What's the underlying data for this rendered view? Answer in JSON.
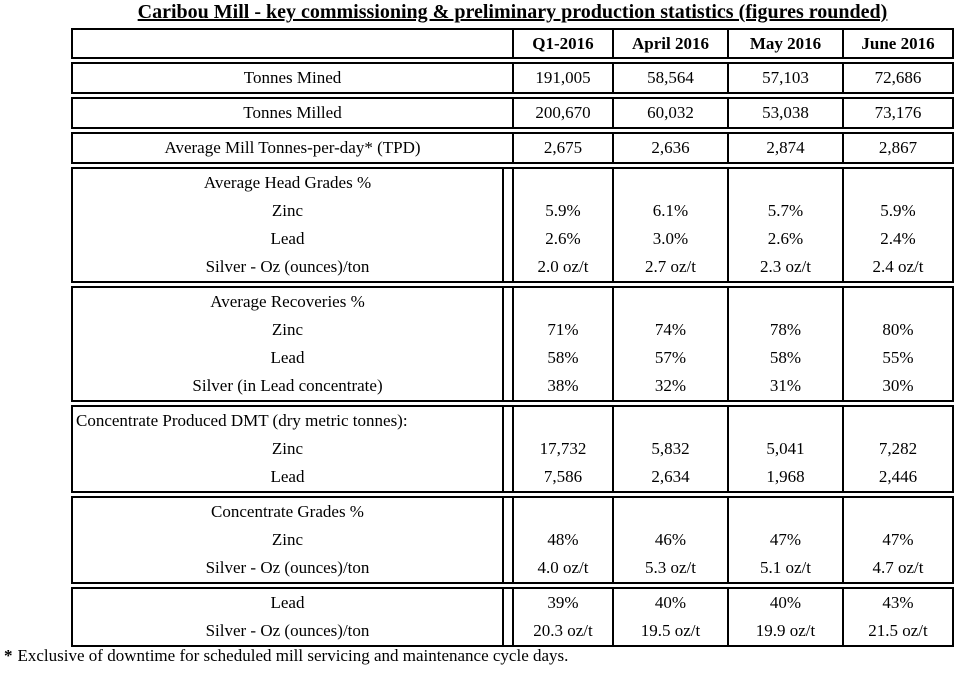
{
  "title": "Caribou Mill - key commissioning & preliminary production statistics (figures rounded)",
  "columns": [
    "Q1-2016",
    "April 2016",
    "May 2016",
    "June 2016"
  ],
  "colors": {
    "border": "#000000",
    "text": "#000000",
    "background": "#ffffff"
  },
  "blocks": [
    {
      "header": true,
      "rows": [
        {
          "label": "",
          "values": [
            "Q1-2016",
            "April 2016",
            "May 2016",
            "June 2016"
          ]
        }
      ]
    },
    {
      "rows": [
        {
          "label": "Tonnes Mined",
          "values": [
            "191,005",
            "58,564",
            "57,103",
            "72,686"
          ]
        }
      ]
    },
    {
      "rows": [
        {
          "label": "Tonnes Milled",
          "values": [
            "200,670",
            "60,032",
            "53,038",
            "73,176"
          ]
        }
      ]
    },
    {
      "rows": [
        {
          "label": "Average Mill Tonnes-per-day* (TPD)",
          "values": [
            "2,675",
            "2,636",
            "2,874",
            "2,867"
          ]
        }
      ]
    },
    {
      "rows": [
        {
          "label": "Average Head Grades %",
          "values": [
            "",
            "",
            "",
            ""
          ]
        },
        {
          "label": "Zinc",
          "values": [
            "5.9%",
            "6.1%",
            "5.7%",
            "5.9%"
          ]
        },
        {
          "label": "Lead",
          "values": [
            "2.6%",
            "3.0%",
            "2.6%",
            "2.4%"
          ]
        },
        {
          "label": "Silver - Oz (ounces)/ton",
          "values": [
            "2.0 oz/t",
            "2.7 oz/t",
            "2.3 oz/t",
            "2.4 oz/t"
          ]
        }
      ]
    },
    {
      "rows": [
        {
          "label": "Average Recoveries %",
          "values": [
            "",
            "",
            "",
            ""
          ]
        },
        {
          "label": "Zinc",
          "values": [
            "71%",
            "74%",
            "78%",
            "80%"
          ]
        },
        {
          "label": "Lead",
          "values": [
            "58%",
            "57%",
            "58%",
            "55%"
          ]
        },
        {
          "label": "Silver (in Lead concentrate)",
          "values": [
            "38%",
            "32%",
            "31%",
            "30%"
          ]
        }
      ]
    },
    {
      "rows": [
        {
          "label": "Concentrate Produced DMT (dry metric tonnes):",
          "align": "left",
          "values": [
            "",
            "",
            "",
            ""
          ]
        },
        {
          "label": "Zinc",
          "values": [
            "17,732",
            "5,832",
            "5,041",
            "7,282"
          ]
        },
        {
          "label": "Lead",
          "values": [
            "7,586",
            "2,634",
            "1,968",
            "2,446"
          ]
        }
      ]
    },
    {
      "rows": [
        {
          "label": "Concentrate Grades %",
          "values": [
            "",
            "",
            "",
            ""
          ]
        },
        {
          "label": "Zinc",
          "values": [
            "48%",
            "46%",
            "47%",
            "47%"
          ]
        },
        {
          "label": "Silver - Oz (ounces)/ton",
          "values": [
            "4.0 oz/t",
            "5.3 oz/t",
            "5.1 oz/t",
            "4.7 oz/t"
          ]
        }
      ]
    },
    {
      "rows": [
        {
          "label": "Lead",
          "values": [
            "39%",
            "40%",
            "40%",
            "43%"
          ]
        },
        {
          "label": "Silver - Oz (ounces)/ton",
          "values": [
            "20.3 oz/t",
            "19.5 oz/t",
            "19.9 oz/t",
            "21.5 oz/t"
          ]
        }
      ]
    }
  ],
  "footnote": {
    "marker": "*",
    "text": "Exclusive of downtime for scheduled mill servicing and maintenance cycle days."
  }
}
